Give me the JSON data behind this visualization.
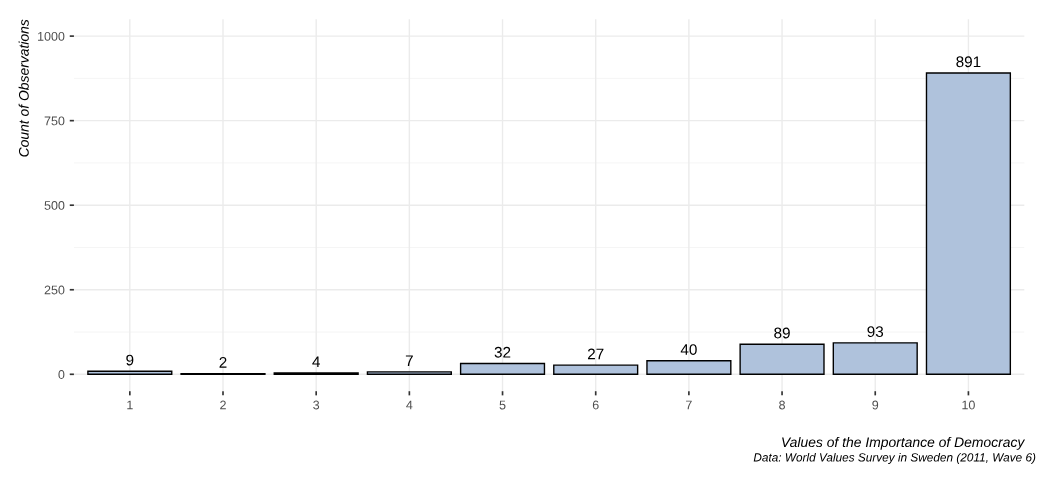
{
  "chart_data": {
    "type": "bar",
    "categories": [
      "1",
      "2",
      "3",
      "4",
      "5",
      "6",
      "7",
      "8",
      "9",
      "10"
    ],
    "values": [
      9,
      2,
      4,
      7,
      32,
      27,
      40,
      89,
      93,
      891
    ],
    "color": "#afc2dc",
    "ylim": [
      -50,
      1050
    ],
    "yticks": [
      0,
      250,
      500,
      750,
      1000
    ],
    "xlabel": "Values of the Importance of Democracy",
    "ylabel": "Count of Observations",
    "annotations": [
      "Data: World Values Survey in Sweden (2011, Wave 6)"
    ],
    "data_labels": true,
    "grid": true
  }
}
